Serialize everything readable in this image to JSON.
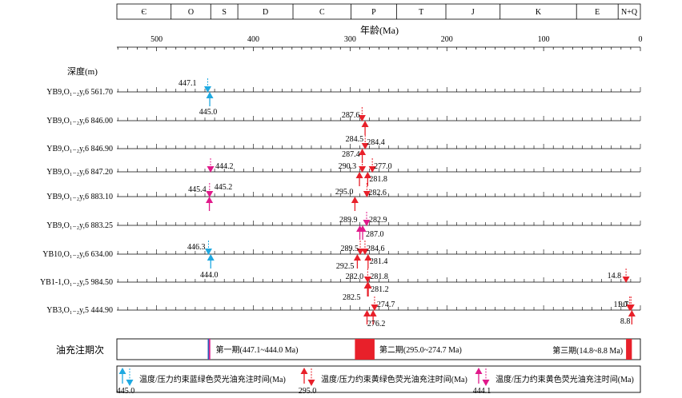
{
  "periods": [
    {
      "label": "Є",
      "from": 541,
      "to": 485
    },
    {
      "label": "O",
      "from": 485,
      "to": 444
    },
    {
      "label": "S",
      "from": 444,
      "to": 416
    },
    {
      "label": "D",
      "from": 416,
      "to": 359
    },
    {
      "label": "C",
      "from": 359,
      "to": 299
    },
    {
      "label": "P",
      "from": 299,
      "to": 252
    },
    {
      "label": "T",
      "from": 252,
      "to": 201
    },
    {
      "label": "J",
      "from": 201,
      "to": 145
    },
    {
      "label": "K",
      "from": 145,
      "to": 66
    },
    {
      "label": "E",
      "from": 66,
      "to": 23
    },
    {
      "label": "N+Q",
      "from": 23,
      "to": 0
    }
  ],
  "axis": {
    "title": "年龄(Ma)",
    "ticks": [
      500,
      400,
      300,
      200,
      100,
      0
    ],
    "range": [
      541,
      0
    ]
  },
  "depth_label": "深度(m)",
  "samples": [
    {
      "label": "YB9,O₁₋₂y,6 561.70",
      "events": [
        {
          "age": 447.1,
          "type": "blue",
          "dir": "down",
          "label": "447.1"
        },
        {
          "age": 445.0,
          "type": "blue",
          "dir": "up",
          "label": "445.0"
        }
      ]
    },
    {
      "label": "YB9,O₁₋₂y,6 846.00",
      "events": [
        {
          "age": 287.6,
          "type": "red",
          "dir": "down",
          "label": "287.6"
        },
        {
          "age": 284.5,
          "type": "red",
          "dir": "up",
          "label": "284.5"
        }
      ]
    },
    {
      "label": "YB9,O₁₋₂y,6 846.90",
      "events": [
        {
          "age": 287.4,
          "type": "red",
          "dir": "up",
          "label": "287.4"
        },
        {
          "age": 284.4,
          "type": "red",
          "dir": "down",
          "label": "284.4"
        }
      ]
    },
    {
      "label": "YB9,O₁₋₂y,6 847.20",
      "events": [
        {
          "age": 444.2,
          "type": "magenta",
          "dir": "down",
          "label": "444.2"
        },
        {
          "age": 290.3,
          "type": "red",
          "dir": "up",
          "label": "290.3"
        },
        {
          "age": 287.4,
          "type": "red",
          "dir": "down",
          "label": ""
        },
        {
          "age": 277.0,
          "type": "red",
          "dir": "down",
          "label": "277.0"
        },
        {
          "age": 281.8,
          "type": "red",
          "dir": "up",
          "label": "281.8"
        }
      ]
    },
    {
      "label": "YB9,O₁₋₂y,6 883.10",
      "events": [
        {
          "age": 445.2,
          "type": "magenta",
          "dir": "down",
          "label": "445.2"
        },
        {
          "age": 445.4,
          "type": "magenta",
          "dir": "up",
          "label": "445.4"
        },
        {
          "age": 295.0,
          "type": "red",
          "dir": "up",
          "label": "295.0"
        },
        {
          "age": 282.6,
          "type": "red",
          "dir": "down",
          "label": "282.6"
        }
      ]
    },
    {
      "label": "YB9,O₁₋₂y,6 883.25",
      "events": [
        {
          "age": 289.9,
          "type": "magenta",
          "dir": "up",
          "label": "289.9"
        },
        {
          "age": 282.9,
          "type": "magenta",
          "dir": "down",
          "label": "282.9"
        },
        {
          "age": 287.0,
          "type": "magenta",
          "dir": "up",
          "label": "287.0"
        }
      ]
    },
    {
      "label": "YB10,O₁₋₂y,6 634.00",
      "events": [
        {
          "age": 446.3,
          "type": "blue",
          "dir": "down",
          "label": "446.3"
        },
        {
          "age": 444.0,
          "type": "blue",
          "dir": "up",
          "label": "444.0"
        },
        {
          "age": 289.5,
          "type": "red",
          "dir": "down",
          "label": "289.5"
        },
        {
          "age": 284.6,
          "type": "red",
          "dir": "down",
          "label": "284.6"
        },
        {
          "age": 281.4,
          "type": "red",
          "dir": "up",
          "label": "281.4"
        },
        {
          "age": 292.5,
          "type": "red",
          "dir": "up",
          "label": "292.5"
        }
      ]
    },
    {
      "label": "YB1-1,O₁₋₂y,5 984.50",
      "events": [
        {
          "age": 282.0,
          "type": "red",
          "dir": "up",
          "label": "282.0"
        },
        {
          "age": 281.8,
          "type": "red",
          "dir": "down",
          "label": "281.8"
        },
        {
          "age": 281.2,
          "type": "red",
          "dir": "up",
          "label": "281.2"
        },
        {
          "age": 14.8,
          "type": "red",
          "dir": "down",
          "label": "14.8"
        }
      ]
    },
    {
      "label": "YB3,O₁₋₂y,5 444.90",
      "events": [
        {
          "age": 282.5,
          "type": "red",
          "dir": "up",
          "label": "282.5"
        },
        {
          "age": 274.7,
          "type": "red",
          "dir": "down",
          "label": "274.7"
        },
        {
          "age": 276.2,
          "type": "red",
          "dir": "up",
          "label": "276.2"
        },
        {
          "age": 11.0,
          "type": "red",
          "dir": "down",
          "label": "11.0"
        },
        {
          "age": 9.7,
          "type": "red",
          "dir": "down",
          "label": "9.7"
        },
        {
          "age": 8.8,
          "type": "red",
          "dir": "up",
          "label": "8.8"
        }
      ]
    }
  ],
  "charge_stages": {
    "title": "油充注期次",
    "stages": [
      {
        "label": "第一期(447.1~444.0 Ma)",
        "from": 447.1,
        "to": 444.0
      },
      {
        "label": "第二期(295.0~274.7 Ma)",
        "from": 295.0,
        "to": 274.7
      },
      {
        "label": "第三期(14.8~8.8 Ma)",
        "from": 14.8,
        "to": 8.8
      }
    ]
  },
  "legend": [
    {
      "type": "blue",
      "label": "温度/压力约束蓝绿色荧光油充注时间(Ma)",
      "example": "445.0"
    },
    {
      "type": "red",
      "label": "温度/压力约束黄绿色荧光油充注时间(Ma)",
      "example": "295.0"
    },
    {
      "type": "magenta",
      "label": "温度/压力约束黄色荧光油充注时间(Ma)",
      "example": "444.1"
    }
  ],
  "colors": {
    "blue": "#1fa9e1",
    "red": "#e8202a",
    "magenta": "#e0198a",
    "stage_blue": "#2a63b8"
  }
}
